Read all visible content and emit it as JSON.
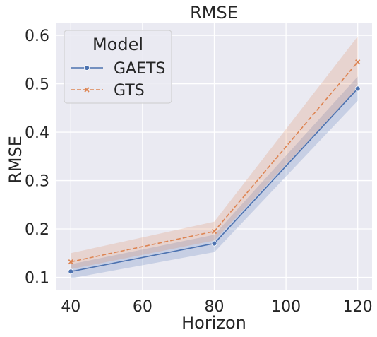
{
  "chart_data": {
    "type": "line",
    "title": "RMSE",
    "xlabel": "Horizon",
    "ylabel": "RMSE",
    "x": [
      40,
      80,
      120
    ],
    "xlim": [
      36,
      124
    ],
    "ylim": [
      0.073,
      0.625
    ],
    "xticks": [
      40,
      60,
      80,
      100,
      120
    ],
    "yticks": [
      0.1,
      0.2,
      0.3,
      0.4,
      0.5,
      0.6
    ],
    "xtick_labels": [
      "40",
      "60",
      "80",
      "100",
      "120"
    ],
    "ytick_labels": [
      "0.1",
      "0.2",
      "0.3",
      "0.4",
      "0.5",
      "0.6"
    ],
    "grid": true,
    "legend_title": "Model",
    "legend_position": "top-left",
    "series": [
      {
        "name": "GAETS",
        "values": [
          0.112,
          0.17,
          0.49
        ],
        "lower": [
          0.098,
          0.152,
          0.465
        ],
        "upper": [
          0.127,
          0.188,
          0.515
        ],
        "color": "#4c72b0",
        "marker": "circle",
        "dashed": false
      },
      {
        "name": "GTS",
        "values": [
          0.132,
          0.195,
          0.545
        ],
        "lower": [
          0.117,
          0.176,
          0.49
        ],
        "upper": [
          0.15,
          0.215,
          0.598
        ],
        "color": "#dd8452",
        "marker": "x",
        "dashed": true
      }
    ]
  },
  "colors": {
    "plot_background": "#eaeaf2",
    "grid": "#ffffff",
    "text": "#262626"
  }
}
